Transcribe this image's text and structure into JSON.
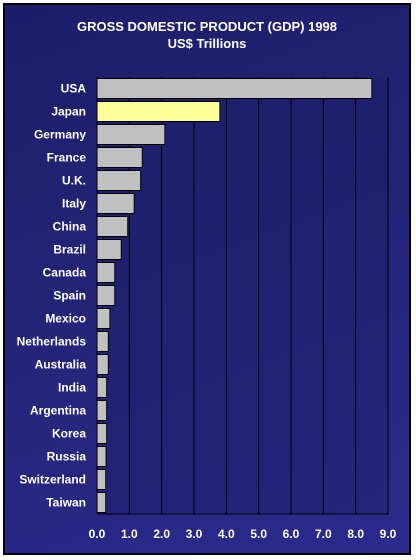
{
  "chart_data": {
    "type": "bar",
    "orientation": "horizontal",
    "title": "GROSS DOMESTIC PRODUCT (GDP) 1998",
    "subtitle": "US$ Trillions",
    "xlabel": "",
    "ylabel": "",
    "xlim": [
      0,
      9
    ],
    "x_ticks": [
      "0.0",
      "1.0",
      "2.0",
      "3.0",
      "4.0",
      "5.0",
      "6.0",
      "7.0",
      "8.0",
      "9.0"
    ],
    "grid": "vertical",
    "categories": [
      "USA",
      "Japan",
      "Germany",
      "France",
      "U.K.",
      "Italy",
      "China",
      "Brazil",
      "Canada",
      "Spain",
      "Mexico",
      "Netherlands",
      "Australia",
      "India",
      "Argentina",
      "Korea",
      "Russia",
      "Switzerland",
      "Taiwan"
    ],
    "values": [
      8.5,
      3.8,
      2.1,
      1.4,
      1.35,
      1.15,
      0.95,
      0.75,
      0.55,
      0.55,
      0.4,
      0.35,
      0.35,
      0.3,
      0.3,
      0.3,
      0.28,
      0.27,
      0.27
    ],
    "highlight": "Japan",
    "colors": {
      "bar": "#c0c0c0",
      "highlight": "#ffff99",
      "bar_stroke": "#000000",
      "grid": "#000000",
      "text": "#ffffff",
      "background_top": "#1c1e6a",
      "background_bottom": "#2b2b8c"
    }
  }
}
